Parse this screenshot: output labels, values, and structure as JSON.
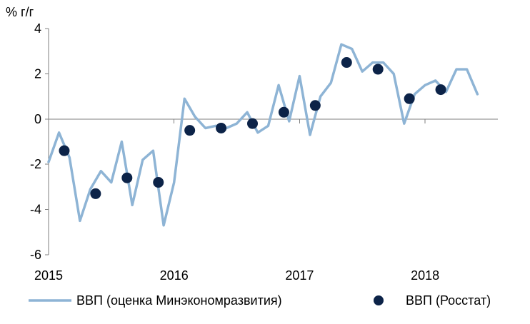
{
  "chart_data": {
    "type": "line",
    "unit_label": "% г/г",
    "ylim": [
      -6,
      4
    ],
    "y_ticks": [
      {
        "value": 4,
        "label": "4"
      },
      {
        "value": 2,
        "label": "2"
      },
      {
        "value": 0,
        "label": "0"
      },
      {
        "value": -2,
        "label": "-2"
      },
      {
        "value": -4,
        "label": "-4"
      },
      {
        "value": -6,
        "label": "-6"
      }
    ],
    "xlim": [
      2015.0,
      2018.58
    ],
    "x_ticks": [
      {
        "value": 2015,
        "label": "2015"
      },
      {
        "value": 2016,
        "label": "2016"
      },
      {
        "value": 2017,
        "label": "2017"
      },
      {
        "value": 2018,
        "label": "2018"
      }
    ],
    "grid": false,
    "legend_position": "bottom",
    "series": [
      {
        "name": "ВВП (оценка Минэкономразвития)",
        "kind": "line",
        "color": "#8eb4d5",
        "points": [
          [
            2015.0,
            -1.9
          ],
          [
            2015.083,
            -0.6
          ],
          [
            2015.167,
            -1.7
          ],
          [
            2015.25,
            -4.5
          ],
          [
            2015.333,
            -3.1
          ],
          [
            2015.417,
            -2.3
          ],
          [
            2015.5,
            -2.8
          ],
          [
            2015.583,
            -1.0
          ],
          [
            2015.667,
            -3.8
          ],
          [
            2015.75,
            -1.8
          ],
          [
            2015.833,
            -1.4
          ],
          [
            2015.917,
            -4.7
          ],
          [
            2016.0,
            -2.8
          ],
          [
            2016.083,
            0.9
          ],
          [
            2016.167,
            0.1
          ],
          [
            2016.25,
            -0.4
          ],
          [
            2016.333,
            -0.3
          ],
          [
            2016.417,
            -0.4
          ],
          [
            2016.5,
            -0.2
          ],
          [
            2016.583,
            0.3
          ],
          [
            2016.667,
            -0.6
          ],
          [
            2016.75,
            -0.3
          ],
          [
            2016.833,
            1.5
          ],
          [
            2016.917,
            -0.1
          ],
          [
            2017.0,
            1.9
          ],
          [
            2017.083,
            -0.7
          ],
          [
            2017.167,
            1.0
          ],
          [
            2017.25,
            1.6
          ],
          [
            2017.333,
            3.3
          ],
          [
            2017.417,
            3.1
          ],
          [
            2017.5,
            2.1
          ],
          [
            2017.583,
            2.5
          ],
          [
            2017.667,
            2.5
          ],
          [
            2017.75,
            2.0
          ],
          [
            2017.833,
            -0.2
          ],
          [
            2017.917,
            1.1
          ],
          [
            2018.0,
            1.5
          ],
          [
            2018.083,
            1.7
          ],
          [
            2018.167,
            1.2
          ],
          [
            2018.25,
            2.2
          ],
          [
            2018.333,
            2.2
          ],
          [
            2018.417,
            1.1
          ]
        ]
      },
      {
        "name": "ВВП (Росстат)",
        "kind": "scatter",
        "color": "#0c2348",
        "points": [
          [
            2015.125,
            -1.4
          ],
          [
            2015.375,
            -3.3
          ],
          [
            2015.625,
            -2.6
          ],
          [
            2015.875,
            -2.8
          ],
          [
            2016.125,
            -0.5
          ],
          [
            2016.375,
            -0.4
          ],
          [
            2016.625,
            -0.2
          ],
          [
            2016.875,
            0.3
          ],
          [
            2017.125,
            0.6
          ],
          [
            2017.375,
            2.5
          ],
          [
            2017.625,
            2.2
          ],
          [
            2017.875,
            0.9
          ],
          [
            2018.125,
            1.3
          ]
        ]
      }
    ]
  }
}
